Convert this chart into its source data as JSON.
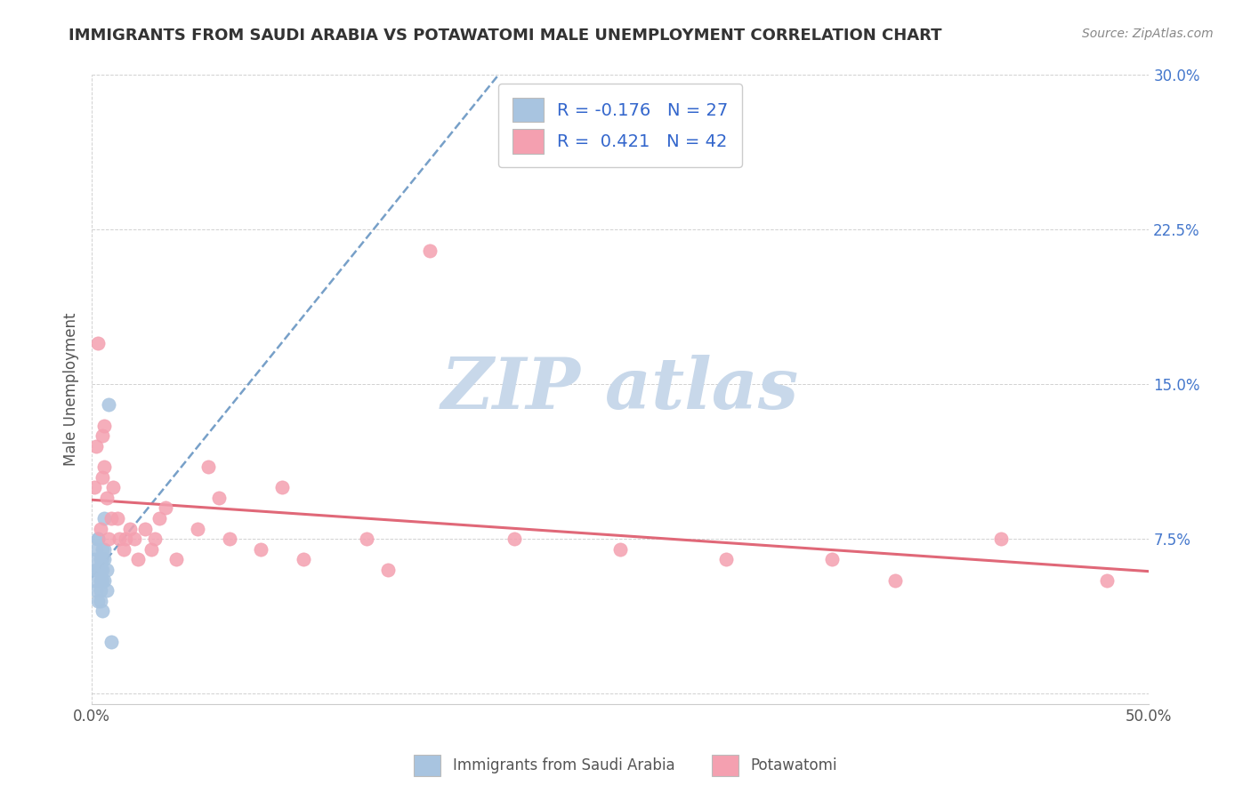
{
  "title": "IMMIGRANTS FROM SAUDI ARABIA VS POTAWATOMI MALE UNEMPLOYMENT CORRELATION CHART",
  "source": "Source: ZipAtlas.com",
  "ylabel": "Male Unemployment",
  "xlim": [
    0,
    0.5
  ],
  "ylim": [
    -0.005,
    0.3
  ],
  "xticks": [
    0.0,
    0.5
  ],
  "xticklabels": [
    "0.0%",
    "50.0%"
  ],
  "yticks": [
    0.0,
    0.075,
    0.15,
    0.225,
    0.3
  ],
  "yticklabels": [
    "",
    "7.5%",
    "15.0%",
    "22.5%",
    "30.0%"
  ],
  "series1_color": "#a8c4e0",
  "series2_color": "#f4a0b0",
  "series1_label": "Immigrants from Saudi Arabia",
  "series2_label": "Potawatomi",
  "R1": -0.176,
  "N1": 27,
  "R2": 0.421,
  "N2": 42,
  "line1_color": "#5588bb",
  "line2_color": "#e06878",
  "watermark_color": "#c8d8ea",
  "background_color": "#ffffff",
  "series1_x": [
    0.001,
    0.001,
    0.002,
    0.002,
    0.002,
    0.003,
    0.003,
    0.003,
    0.003,
    0.004,
    0.004,
    0.004,
    0.004,
    0.004,
    0.005,
    0.005,
    0.005,
    0.005,
    0.005,
    0.006,
    0.006,
    0.006,
    0.006,
    0.007,
    0.007,
    0.008,
    0.009
  ],
  "series1_y": [
    0.065,
    0.055,
    0.07,
    0.06,
    0.05,
    0.075,
    0.075,
    0.06,
    0.045,
    0.065,
    0.06,
    0.055,
    0.05,
    0.045,
    0.07,
    0.065,
    0.06,
    0.055,
    0.04,
    0.085,
    0.07,
    0.065,
    0.055,
    0.06,
    0.05,
    0.14,
    0.025
  ],
  "series2_x": [
    0.001,
    0.002,
    0.003,
    0.004,
    0.005,
    0.005,
    0.006,
    0.006,
    0.007,
    0.008,
    0.009,
    0.01,
    0.012,
    0.013,
    0.015,
    0.016,
    0.018,
    0.02,
    0.022,
    0.025,
    0.028,
    0.03,
    0.032,
    0.035,
    0.04,
    0.05,
    0.055,
    0.06,
    0.065,
    0.08,
    0.09,
    0.1,
    0.13,
    0.14,
    0.16,
    0.2,
    0.25,
    0.3,
    0.35,
    0.38,
    0.43,
    0.48
  ],
  "series2_y": [
    0.1,
    0.12,
    0.17,
    0.08,
    0.125,
    0.105,
    0.13,
    0.11,
    0.095,
    0.075,
    0.085,
    0.1,
    0.085,
    0.075,
    0.07,
    0.075,
    0.08,
    0.075,
    0.065,
    0.08,
    0.07,
    0.075,
    0.085,
    0.09,
    0.065,
    0.08,
    0.11,
    0.095,
    0.075,
    0.07,
    0.1,
    0.065,
    0.075,
    0.06,
    0.215,
    0.075,
    0.07,
    0.065,
    0.065,
    0.055,
    0.075,
    0.055
  ]
}
